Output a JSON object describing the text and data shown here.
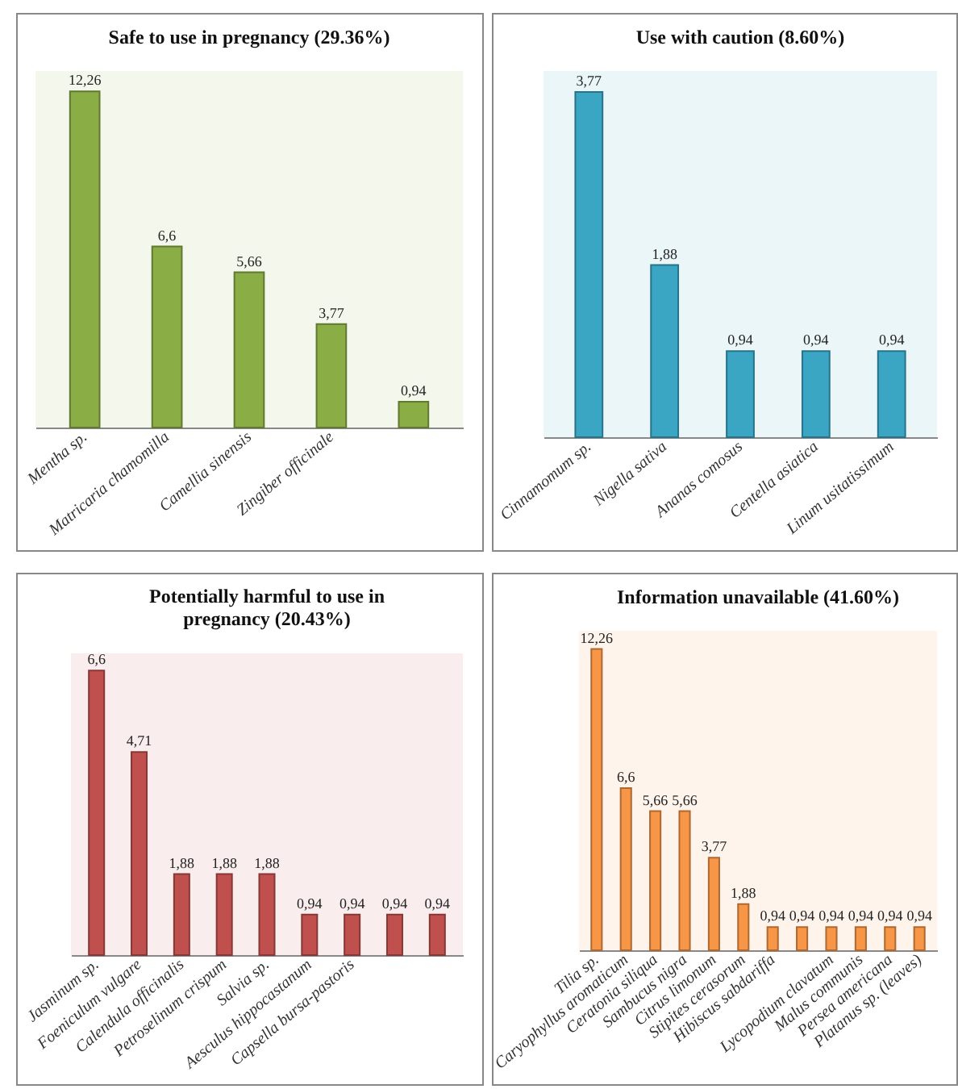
{
  "chart_data": [
    {
      "type": "bar",
      "title": "Safe to use in pregnancy (29.36%)",
      "categories": [
        "Mentha sp.",
        "Matricaria chamomilla",
        "Camellia sinensis",
        "Zingiber officinale",
        null
      ],
      "values": [
        12.26,
        6.6,
        5.66,
        3.77,
        0.94
      ],
      "value_labels": [
        "12,26",
        "6,6",
        "5,66",
        "3,77",
        "0,94"
      ],
      "color": "#8aad45",
      "tick_labels": "x"
    },
    {
      "type": "bar",
      "title": "Use with caution (8.60%)",
      "categories": [
        "Cinnamomum sp.",
        "Nigella sativa",
        "Ananas comosus",
        "Centella asiatica",
        "Linum usitatissimum"
      ],
      "values": [
        3.77,
        1.88,
        0.94,
        0.94,
        0.94
      ],
      "value_labels": [
        "3,77",
        "1,88",
        "0,94",
        "0,94",
        "0,94"
      ],
      "color": "#3ba5c4",
      "tick_labels": "x"
    },
    {
      "type": "bar",
      "title": "Potentially harmful to use in pregnancy (20.43%)",
      "categories": [
        "Jasminum sp.",
        "Foeniculum vulgare",
        "Calendula officinalis",
        "Petroselinum crispum",
        "Salvia sp.",
        "Aesculus hippocastanum",
        "Capsella bursa-pastoris",
        null,
        null
      ],
      "values": [
        6.6,
        4.71,
        1.88,
        1.88,
        1.88,
        0.94,
        0.94,
        0.94,
        0.94
      ],
      "value_labels": [
        "6,6",
        "4,71",
        "1,88",
        "1,88",
        "1,88",
        "0,94",
        "0,94",
        "0,94",
        "0,94"
      ],
      "color": "#c0504d",
      "tick_labels": "x"
    },
    {
      "type": "bar",
      "title": "Information unavailable (41.60%)",
      "categories": [
        "Tilia sp.",
        "Caryophyllus aromaticum",
        "Ceratonia siliqua",
        "Sambucus nigra",
        "Citrus limonum",
        "Stipites cerasorum",
        "Hibiscus sabdariffa",
        null,
        "Lycopodium clavatum",
        "Malus communis",
        "Persea americana",
        "Platanus sp. (leaves)"
      ],
      "values": [
        12.26,
        6.6,
        5.66,
        5.66,
        3.77,
        1.88,
        0.94,
        0.94,
        0.94,
        0.94,
        0.94,
        0.94
      ],
      "value_labels": [
        "12,26",
        "6,6",
        "5,66",
        "5,66",
        "3,77",
        "1,88",
        "0,94",
        "0,94",
        "0,94",
        "0,94",
        "0,94",
        "0,94"
      ],
      "color": "#f79646",
      "tick_labels": "x"
    }
  ]
}
